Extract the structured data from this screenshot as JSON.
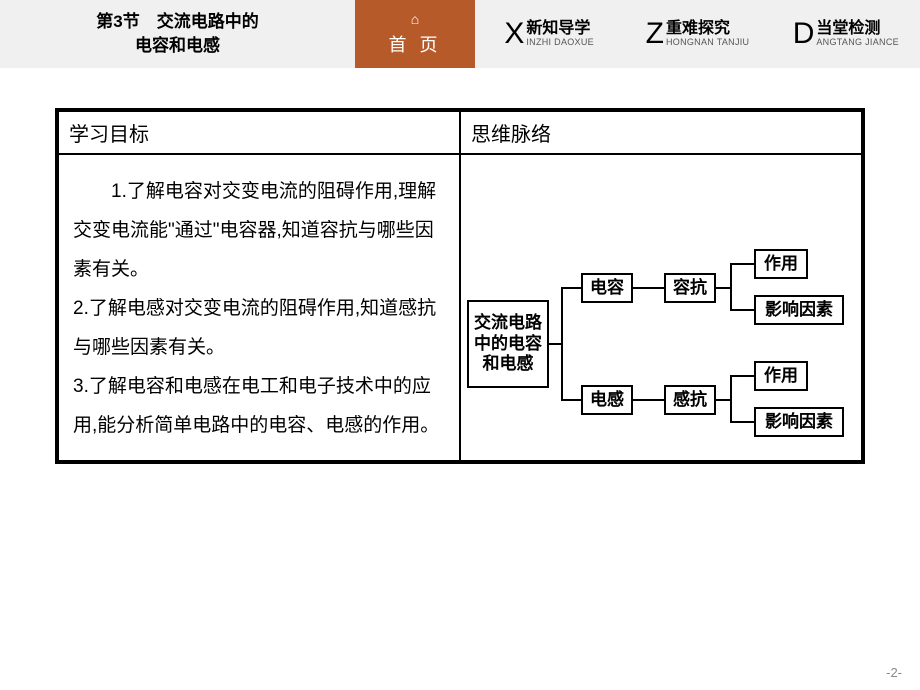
{
  "header": {
    "title_line1": "第3节　交流电路中的",
    "title_line2": "电容和电感",
    "home_label": "首 页",
    "tabs": [
      {
        "letter": "X",
        "zh": "新知导学",
        "en": "INZHI DAOXUE"
      },
      {
        "letter": "Z",
        "zh": "重难探究",
        "en": "HONGNAN TANJIU"
      },
      {
        "letter": "D",
        "zh": "当堂检测",
        "en": "ANGTANG JIANCE"
      }
    ]
  },
  "table": {
    "col1_header": "学习目标",
    "col2_header": "思维脉络",
    "objectives_html": "　　1.了解电容对交变电流的阻碍作用,理解交变电流能\"通过\"电容器,知道容抗与哪些因素有关。<br>2.了解电感对交变电流的阻碍作用,知道感抗与哪些因素有关。<br>3.了解电容和电感在电工和电子技术中的应用,能分析简单电路中的电容、电感的作用。"
  },
  "diagram": {
    "root": "交流电路中的电容和电感",
    "b1": "电容",
    "b2": "电感",
    "c1": "容抗",
    "c2": "感抗",
    "d1": "作用",
    "d2": "影响因素",
    "d3": "作用",
    "d4": "影响因素",
    "colors": {
      "box_border": "#000000",
      "line": "#000000",
      "header_bg": "#f0f0f0",
      "home_bg": "#b75a29",
      "home_fg": "#ffffff",
      "page_bg": "#ffffff",
      "pagenum_color": "#888888"
    }
  },
  "pagenum": "-2-"
}
